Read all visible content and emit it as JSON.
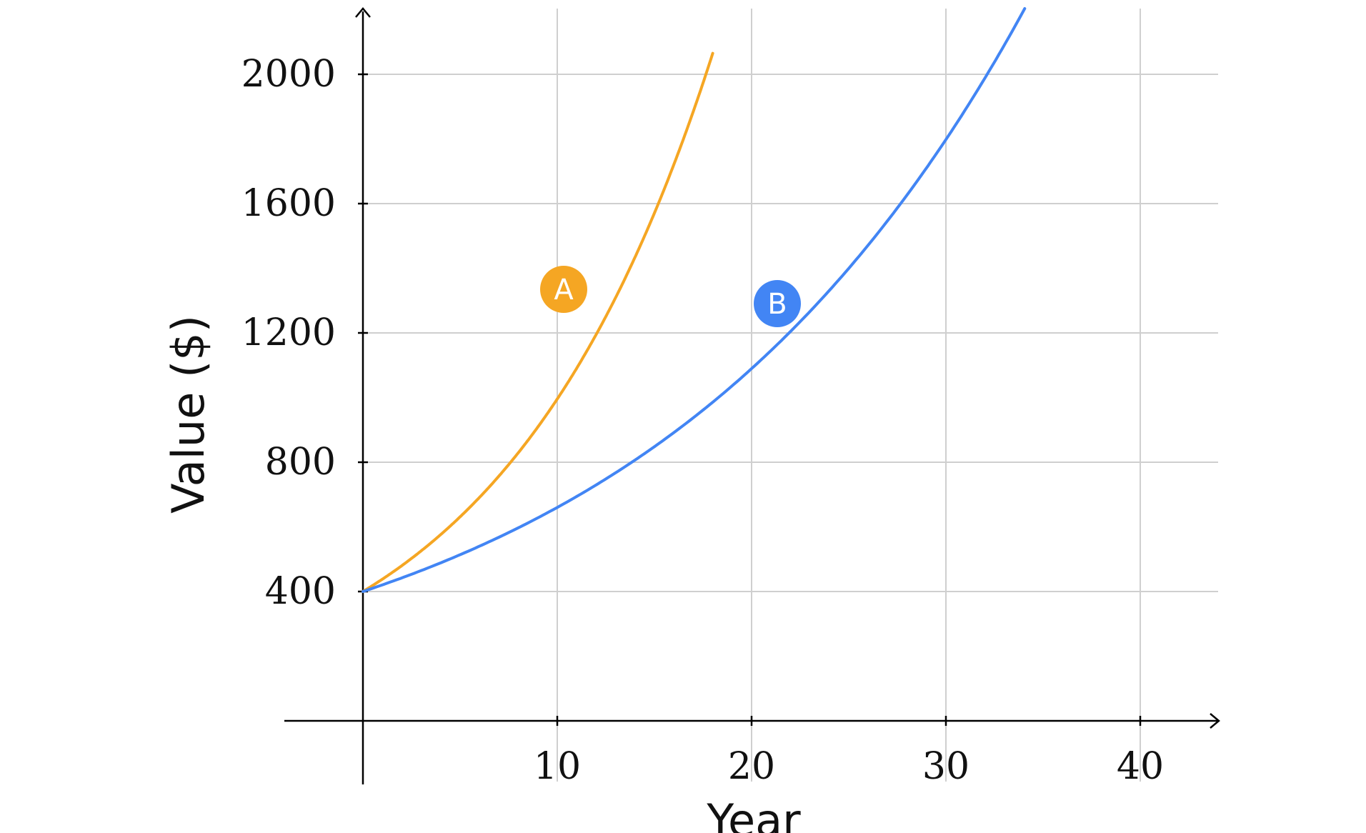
{
  "chart_data": {
    "type": "line",
    "title": "",
    "xlabel": "Year",
    "ylabel": "Value ($)",
    "xlim": [
      -4,
      44
    ],
    "ylim": [
      -20,
      2200
    ],
    "x_ticks": [
      10,
      20,
      30,
      40
    ],
    "y_ticks": [
      400,
      800,
      1200,
      1600,
      2000
    ],
    "grid": true,
    "series": [
      {
        "name": "A",
        "color": "#F5A623",
        "x": [
          0,
          2,
          4,
          6,
          8,
          10,
          12,
          14,
          16,
          18
        ],
        "y": [
          400,
          480,
          575,
          690,
          830,
          995,
          1195,
          1435,
          1720,
          2065
        ]
      },
      {
        "name": "B",
        "color": "#4285F4",
        "x": [
          0,
          5,
          10,
          15,
          20,
          25,
          30,
          35
        ],
        "y": [
          400,
          515,
          660,
          850,
          1090,
          1400,
          1800,
          2310
        ]
      }
    ]
  }
}
